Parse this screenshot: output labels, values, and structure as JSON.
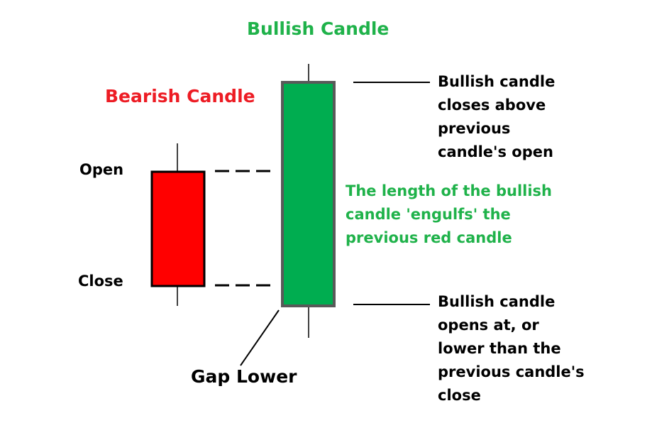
{
  "titles": {
    "bullish": "Bullish Candle",
    "bearish": "Bearish Candle"
  },
  "labels": {
    "open": "Open",
    "close": "Close",
    "gap_lower": "Gap Lower"
  },
  "annotations": {
    "closes_above": [
      "Bullish candle",
      "closes above",
      "previous",
      "candle's open"
    ],
    "engulfs": [
      "The length of the bullish",
      "candle 'engulfs' the",
      "previous red candle"
    ],
    "opens_at": [
      "Bullish candle",
      "opens at, or",
      "lower than the",
      "previous candle's",
      "close"
    ]
  },
  "colors": {
    "bearish_body": "#ff0000",
    "bullish_body": "#00ad50",
    "bullish_title": "#1fb24a",
    "bearish_title": "#ed1c24",
    "bullish_border": "#595959"
  }
}
